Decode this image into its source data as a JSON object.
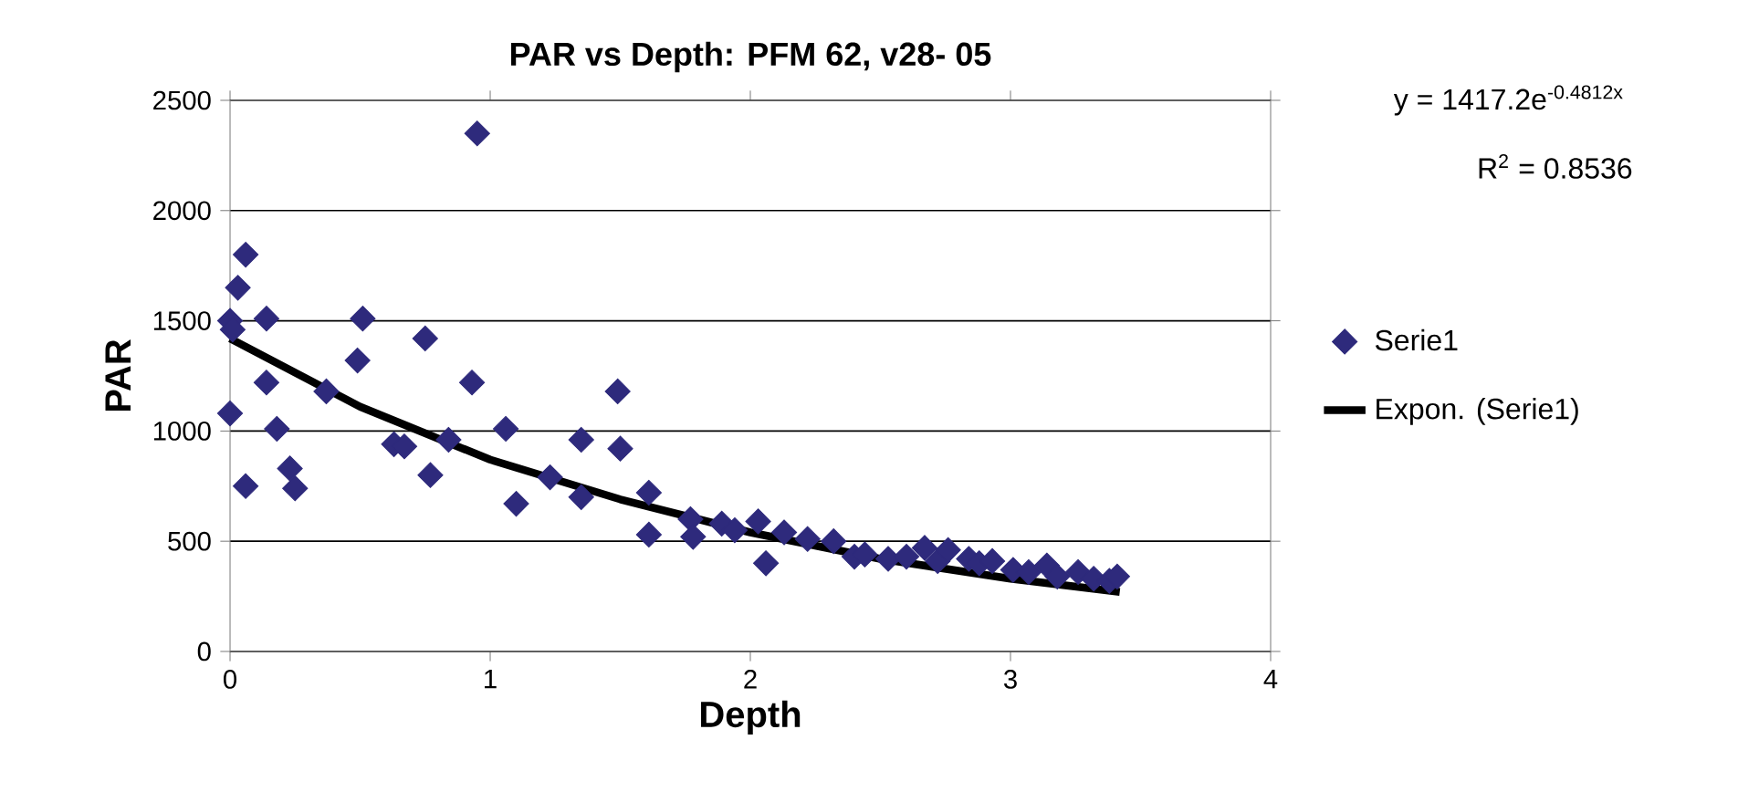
{
  "chart_data": {
    "type": "scatter",
    "title": "PAR vs Depth: PFM 62, v28- 05",
    "xlabel": "Depth",
    "ylabel": "PAR",
    "xlim": [
      0,
      4
    ],
    "xticks": [
      0,
      1,
      2,
      3,
      4
    ],
    "ylim": [
      0,
      2500
    ],
    "yticks": [
      0,
      500,
      1000,
      1500,
      2000,
      2500
    ],
    "grid": "y",
    "legend": "right",
    "marker": "diamond",
    "annotations": [
      "y = 1417.2e$^{-0.4812x}$",
      "R$^{2}$ = 0.8536"
    ],
    "series": [
      {
        "name": "Serie1",
        "color": "#2e2a7c",
        "x": [
          0,
          0,
          0.01,
          0.03,
          0.06,
          0.06,
          0.14,
          0.14,
          0.18,
          0.23,
          0.25,
          0.37,
          0.49,
          0.51,
          0.63,
          0.67,
          0.75,
          0.77,
          0.84,
          0.93,
          0.95,
          1.06,
          1.1,
          1.23,
          1.35,
          1.35,
          1.49,
          1.5,
          1.61,
          1.61,
          1.77,
          1.78,
          1.89,
          1.94,
          2.03,
          2.06,
          2.13,
          2.22,
          2.32,
          2.4,
          2.44,
          2.53,
          2.6,
          2.67,
          2.72,
          2.76,
          2.84,
          2.88,
          2.93,
          3.01,
          3.07,
          3.14,
          3.18,
          3.26,
          3.32,
          3.38,
          3.41
        ],
        "values": [
          1080,
          1500,
          1460,
          1650,
          1800,
          750,
          1510,
          1220,
          1010,
          830,
          740,
          1180,
          1320,
          1510,
          940,
          930,
          1420,
          800,
          960,
          1220,
          2350,
          1010,
          670,
          790,
          700,
          960,
          1180,
          920,
          720,
          530,
          600,
          520,
          580,
          550,
          590,
          400,
          540,
          510,
          500,
          430,
          440,
          420,
          430,
          470,
          410,
          460,
          420,
          400,
          410,
          370,
          360,
          390,
          340,
          360,
          330,
          320,
          340
        ]
      },
      {
        "name": "Expon. (Serie1)",
        "type": "line",
        "color": "#000000",
        "marker": "none",
        "x": [
          0,
          0.5,
          1,
          1.5,
          2,
          2.5,
          3,
          3.42
        ],
        "values": [
          1420,
          1110,
          870,
          690,
          540,
          420,
          330,
          270
        ]
      }
    ]
  }
}
